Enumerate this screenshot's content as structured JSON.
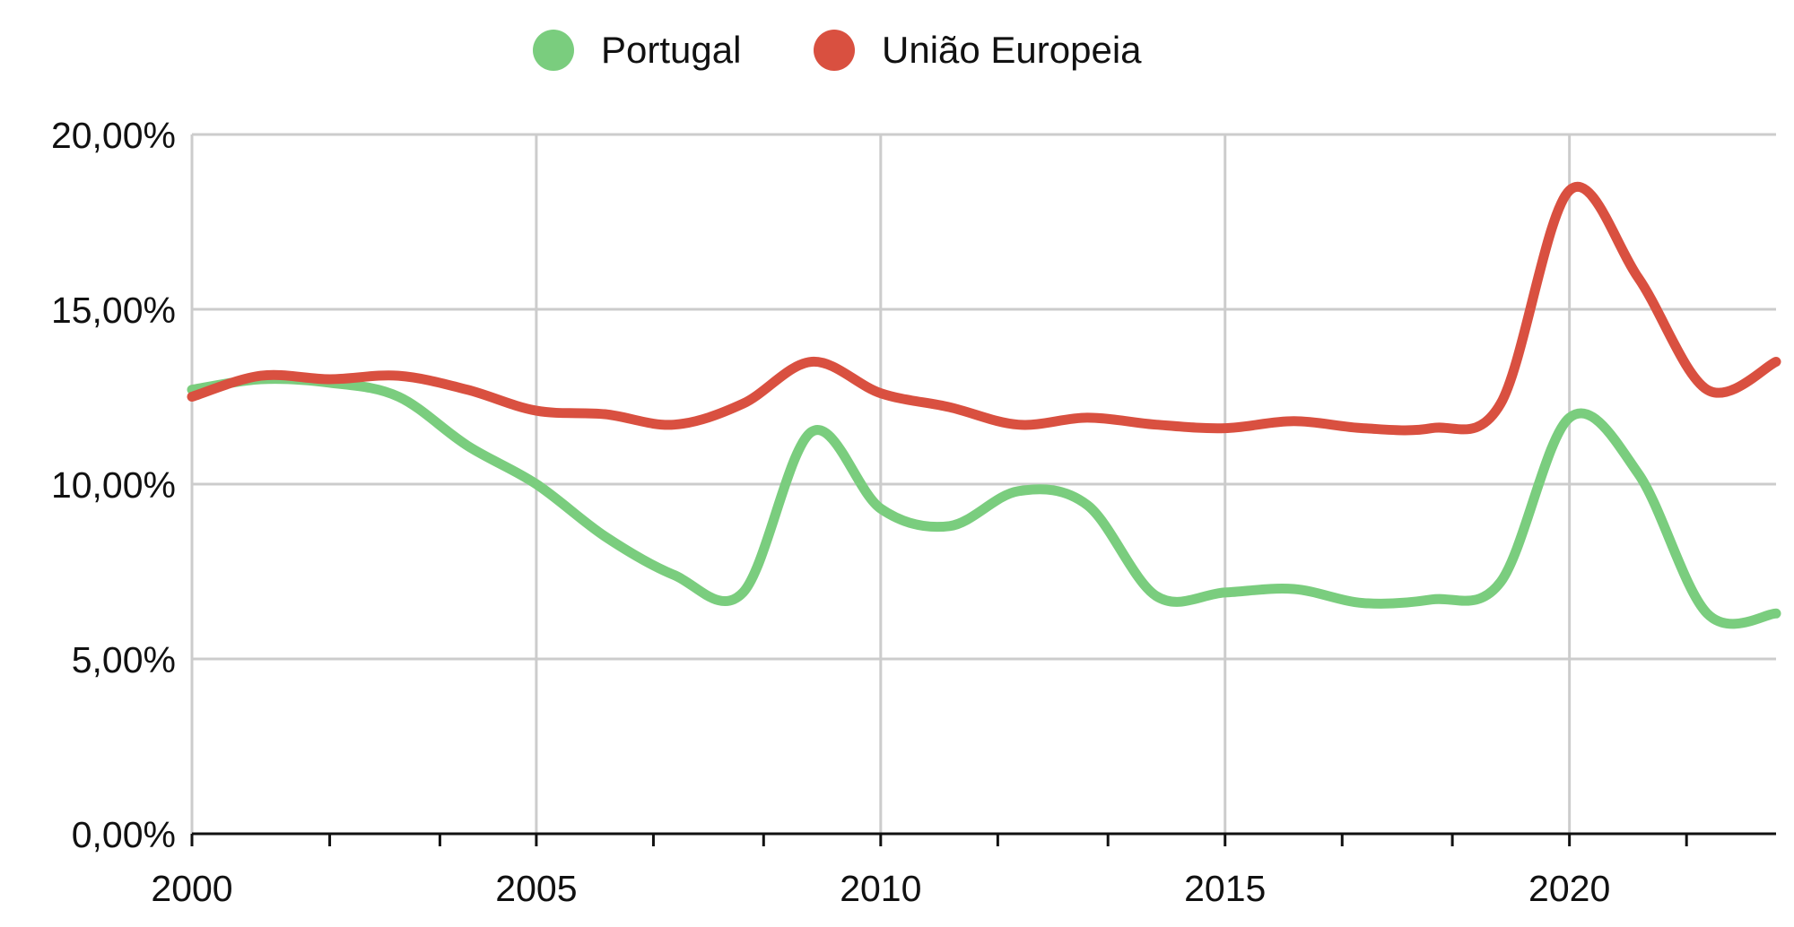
{
  "chart_data": {
    "type": "line",
    "title": "",
    "xlabel": "",
    "ylabel": "",
    "legend_position": "top",
    "grid": true,
    "xlim": [
      2000,
      2023
    ],
    "ylim": [
      0,
      20
    ],
    "x_ticks": [
      2000,
      2005,
      2010,
      2015,
      2020
    ],
    "x_tick_labels": [
      "2000",
      "2005",
      "2010",
      "2015",
      "2020"
    ],
    "x_minor_ticks": [
      2002,
      2003.6,
      2006.7,
      2008.3,
      2011.7,
      2013.3,
      2016.7,
      2018.3,
      2021.7
    ],
    "y_ticks": [
      0,
      5,
      10,
      15,
      20
    ],
    "y_tick_labels": [
      "0,00%",
      "5,00%",
      "10,00%",
      "15,00%",
      "20,00%"
    ],
    "x": [
      2000,
      2001,
      2002,
      2003,
      2004,
      2005,
      2006,
      2007,
      2008,
      2009,
      2010,
      2011,
      2012,
      2013,
      2014,
      2015,
      2016,
      2017,
      2018,
      2019,
      2020,
      2021,
      2022,
      2023
    ],
    "series": [
      {
        "name": "Portugal",
        "color": "#7acd7e",
        "values": [
          12.7,
          13.0,
          12.9,
          12.5,
          11.1,
          10.0,
          8.5,
          7.4,
          6.9,
          11.5,
          9.3,
          8.8,
          9.8,
          9.4,
          6.8,
          6.9,
          7.0,
          6.6,
          6.7,
          7.2,
          11.9,
          10.3,
          6.3,
          6.3
        ]
      },
      {
        "name": "União Europeia",
        "color": "#d95040",
        "values": [
          12.5,
          13.1,
          13.0,
          13.1,
          12.7,
          12.1,
          12.0,
          11.7,
          12.3,
          13.5,
          12.6,
          12.2,
          11.7,
          11.9,
          11.7,
          11.6,
          11.8,
          11.6,
          11.6,
          12.3,
          18.4,
          15.9,
          12.7,
          13.5
        ]
      }
    ]
  }
}
